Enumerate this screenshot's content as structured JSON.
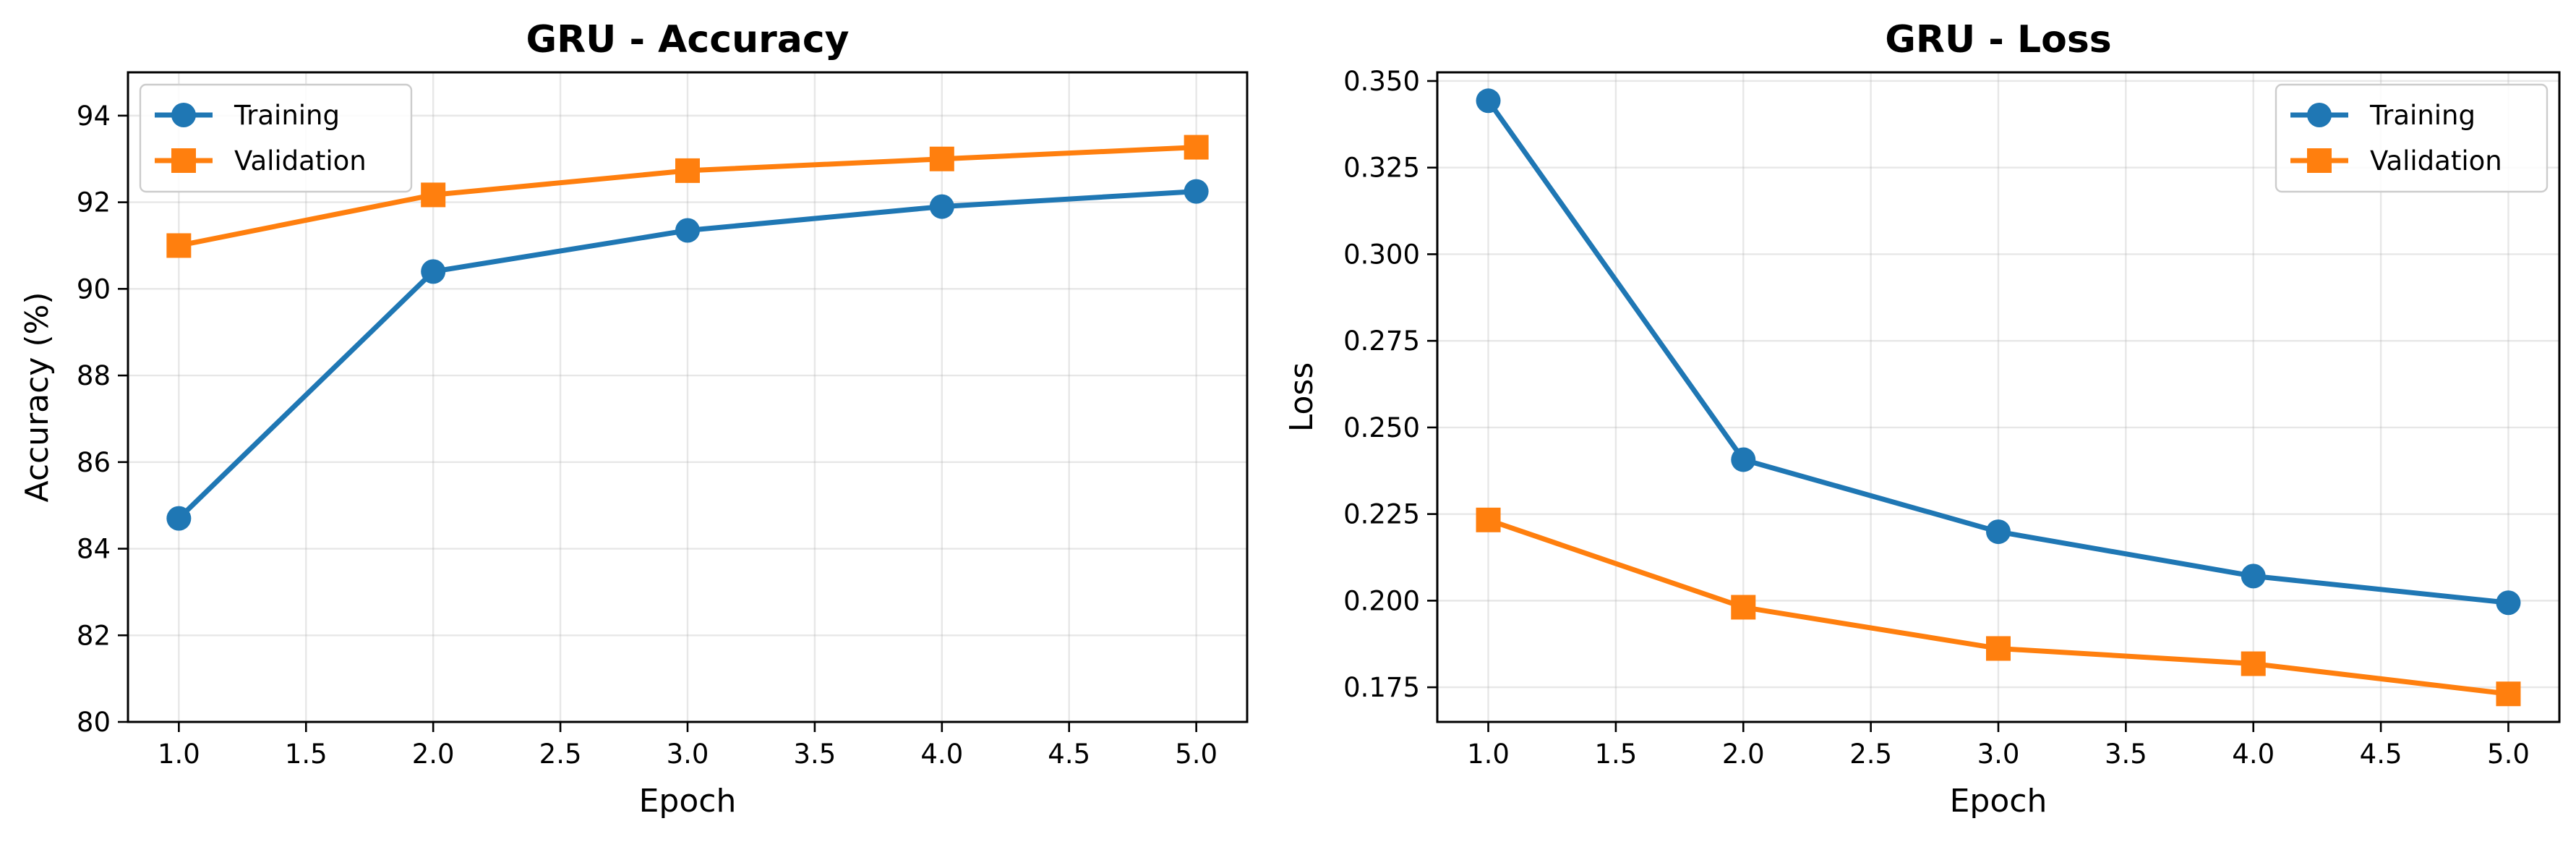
{
  "chart_data": [
    {
      "type": "line",
      "title": "GRU - Accuracy",
      "xlabel": "Epoch",
      "ylabel": "Accuracy (%)",
      "xlim": [
        0.8,
        5.2
      ],
      "ylim": [
        80,
        95
      ],
      "xticks": [
        1.0,
        1.5,
        2.0,
        2.5,
        3.0,
        3.5,
        4.0,
        4.5,
        5.0
      ],
      "xtick_labels": [
        "1.0",
        "1.5",
        "2.0",
        "2.5",
        "3.0",
        "3.5",
        "4.0",
        "4.5",
        "5.0"
      ],
      "yticks": [
        80,
        82,
        84,
        86,
        88,
        90,
        92,
        94
      ],
      "ytick_labels": [
        "80",
        "82",
        "84",
        "86",
        "88",
        "90",
        "92",
        "94"
      ],
      "grid": true,
      "legend_position": "upper-left",
      "x": [
        1,
        2,
        3,
        4,
        5
      ],
      "series": [
        {
          "name": "Training",
          "marker": "circle",
          "color": "#1f77b4",
          "values": [
            84.7,
            90.4,
            91.35,
            91.9,
            92.25
          ]
        },
        {
          "name": "Validation",
          "marker": "square",
          "color": "#ff7f0e",
          "values": [
            91.0,
            92.17,
            92.73,
            93.0,
            93.27
          ]
        }
      ]
    },
    {
      "type": "line",
      "title": "GRU - Loss",
      "xlabel": "Epoch",
      "ylabel": "Loss",
      "xlim": [
        0.8,
        5.2
      ],
      "ylim": [
        0.165,
        0.3525
      ],
      "xticks": [
        1.0,
        1.5,
        2.0,
        2.5,
        3.0,
        3.5,
        4.0,
        4.5,
        5.0
      ],
      "xtick_labels": [
        "1.0",
        "1.5",
        "2.0",
        "2.5",
        "3.0",
        "3.5",
        "4.0",
        "4.5",
        "5.0"
      ],
      "yticks": [
        0.175,
        0.2,
        0.225,
        0.25,
        0.275,
        0.3,
        0.325,
        0.35
      ],
      "ytick_labels": [
        "0.175",
        "0.200",
        "0.225",
        "0.250",
        "0.275",
        "0.300",
        "0.325",
        "0.350"
      ],
      "grid": true,
      "legend_position": "upper-right",
      "x": [
        1,
        2,
        3,
        4,
        5
      ],
      "series": [
        {
          "name": "Training",
          "marker": "circle",
          "color": "#1f77b4",
          "values": [
            0.3443,
            0.2407,
            0.2199,
            0.2071,
            0.1994
          ]
        },
        {
          "name": "Validation",
          "marker": "square",
          "color": "#ff7f0e",
          "values": [
            0.2233,
            0.1981,
            0.1862,
            0.1818,
            0.1731
          ]
        }
      ]
    }
  ]
}
